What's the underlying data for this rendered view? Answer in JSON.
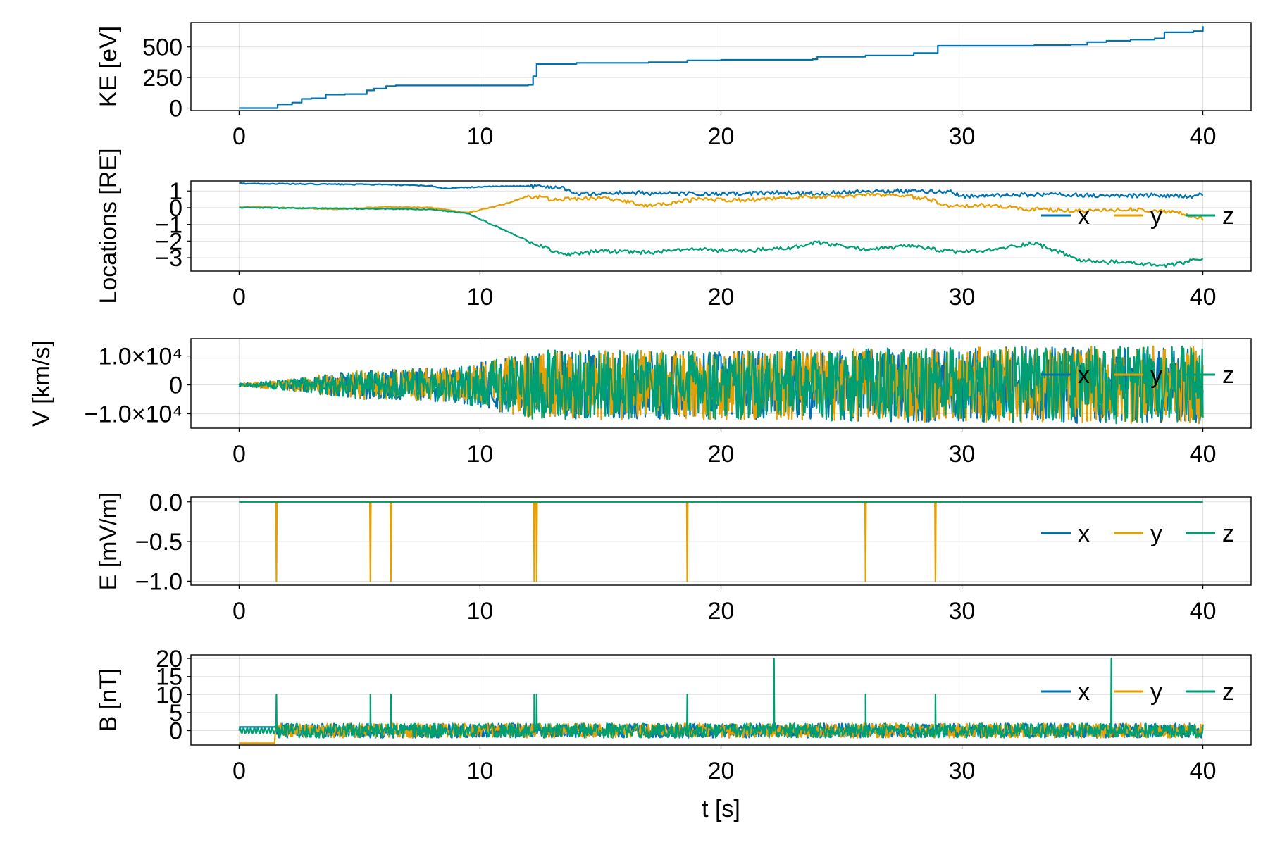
{
  "chart_data": [
    {
      "type": "line",
      "ylabel": "KE [eV]",
      "xlabel": "",
      "xlim": [
        -2,
        42
      ],
      "ylim": [
        -20,
        700
      ],
      "xticks": [
        0,
        10,
        20,
        30,
        40
      ],
      "xtick_labels": [
        "0",
        "10",
        "20",
        "30",
        "40"
      ],
      "yticks": [
        0,
        250,
        500
      ],
      "ytick_labels": [
        "0",
        "250",
        "500"
      ],
      "grid": true,
      "legend": null,
      "series": [
        {
          "color": "#0072B2",
          "x": [
            0,
            1.4,
            1.6,
            2.2,
            2.6,
            3.0,
            3.6,
            4.4,
            5.3,
            5.6,
            6.1,
            6.5,
            8.0,
            12.0,
            12.2,
            12.35,
            14.0,
            17.0,
            18.6,
            20.0,
            23.8,
            24.0,
            26.0,
            28.0,
            29.0,
            33.0,
            34.5,
            35.2,
            36.0,
            37.0,
            38.0,
            38.4,
            39.6,
            40.0
          ],
          "y": [
            0,
            0,
            30,
            45,
            75,
            80,
            110,
            115,
            145,
            160,
            180,
            185,
            185,
            190,
            260,
            360,
            370,
            375,
            390,
            395,
            400,
            420,
            430,
            450,
            510,
            515,
            520,
            540,
            550,
            560,
            570,
            620,
            630,
            670
          ]
        }
      ]
    },
    {
      "type": "line",
      "ylabel": "Locations [RE]",
      "xlabel": "",
      "xlim": [
        -2,
        42
      ],
      "ylim": [
        -3.8,
        1.6
      ],
      "xticks": [
        0,
        10,
        20,
        30,
        40
      ],
      "xtick_labels": [
        "0",
        "10",
        "20",
        "30",
        "40"
      ],
      "yticks": [
        -3,
        -2,
        -1,
        0,
        1
      ],
      "ytick_labels": [
        "−3",
        "−2",
        "−1",
        "0",
        "1"
      ],
      "grid": true,
      "legend": "right",
      "series": [
        {
          "name": "x",
          "color": "#0072B2",
          "x": [
            0,
            2,
            4,
            6,
            8,
            8.5,
            10,
            12,
            13.5,
            14,
            16,
            18,
            20,
            22,
            24,
            26,
            28,
            29.5,
            30,
            32,
            34,
            36,
            38,
            39.5,
            40
          ],
          "y": [
            1.45,
            1.42,
            1.4,
            1.38,
            1.3,
            1.15,
            1.25,
            1.3,
            1.2,
            0.8,
            0.9,
            0.85,
            0.8,
            0.9,
            0.85,
            1.0,
            1.0,
            0.95,
            0.7,
            0.75,
            0.8,
            0.7,
            0.75,
            0.65,
            0.8
          ]
        },
        {
          "name": "y",
          "color": "#E69F00",
          "x": [
            0,
            2,
            4,
            6,
            8,
            9.5,
            11,
            12,
            13,
            15,
            17,
            19,
            21,
            23,
            25,
            27,
            28.5,
            29.5,
            31,
            33,
            35,
            37,
            39,
            40
          ],
          "y": [
            0.05,
            0.0,
            -0.1,
            0.05,
            0.0,
            -0.3,
            0.2,
            0.7,
            0.5,
            0.6,
            0.1,
            0.5,
            0.45,
            0.6,
            0.7,
            0.8,
            0.55,
            0.1,
            0.15,
            -0.1,
            -0.2,
            -0.1,
            -0.3,
            -0.7
          ]
        },
        {
          "name": "z",
          "color": "#009E73",
          "x": [
            0,
            4,
            8,
            9.5,
            12,
            13.5,
            15,
            17,
            19,
            21,
            23,
            24,
            26,
            28,
            29.5,
            31,
            33,
            35,
            37,
            38.5,
            40
          ],
          "y": [
            0.0,
            -0.05,
            -0.1,
            -0.35,
            -2.0,
            -2.85,
            -2.6,
            -2.7,
            -2.5,
            -2.6,
            -2.4,
            -2.1,
            -2.5,
            -2.3,
            -2.65,
            -2.6,
            -2.1,
            -3.2,
            -3.3,
            -3.5,
            -3.05
          ]
        }
      ]
    },
    {
      "type": "line",
      "ylabel": "V [km/s]",
      "xlabel": "",
      "xlim": [
        -2,
        42
      ],
      "ylim": [
        -15000,
        16000
      ],
      "xticks": [
        0,
        10,
        20,
        30,
        40
      ],
      "xtick_labels": [
        "0",
        "10",
        "20",
        "30",
        "40"
      ],
      "yticks": [
        -10000,
        0,
        10000
      ],
      "ytick_labels": [
        "−1.0×10⁴",
        "0",
        "1.0×10⁴"
      ],
      "grid": true,
      "legend": "right",
      "series": [
        {
          "name": "x",
          "color": "#0072B2",
          "envelope_x": [
            0,
            1.5,
            5,
            9,
            12.3,
            20,
            30,
            40
          ],
          "envelope_amplitude": [
            500,
            1500,
            5000,
            6000,
            12000,
            12000,
            13000,
            13500
          ]
        },
        {
          "name": "y",
          "color": "#E69F00",
          "envelope_x": [
            0,
            1.5,
            5,
            9,
            12.3,
            20,
            30,
            40
          ],
          "envelope_amplitude": [
            500,
            1500,
            5000,
            6000,
            12000,
            12000,
            13000,
            13500
          ]
        },
        {
          "name": "z",
          "color": "#009E73",
          "envelope_x": [
            0,
            1.5,
            5,
            9,
            12.3,
            20,
            30,
            40
          ],
          "envelope_amplitude": [
            500,
            1500,
            5000,
            6000,
            12000,
            12000,
            13000,
            13500
          ]
        }
      ]
    },
    {
      "type": "line",
      "ylabel": "E [mV/m]",
      "xlabel": "",
      "xlim": [
        -2,
        42
      ],
      "ylim": [
        -1.05,
        0.06
      ],
      "xticks": [
        0,
        10,
        20,
        30,
        40
      ],
      "xtick_labels": [
        "0",
        "10",
        "20",
        "30",
        "40"
      ],
      "yticks": [
        -1.0,
        -0.5,
        0.0
      ],
      "ytick_labels": [
        "−1.0",
        "−0.5",
        "0.0"
      ],
      "grid": true,
      "legend": "right",
      "series": [
        {
          "name": "x",
          "color": "#0072B2",
          "x": [
            0,
            40
          ],
          "y": [
            0,
            0
          ]
        },
        {
          "name": "y",
          "color": "#E69F00",
          "baseline": 0,
          "spike_x": [
            1.55,
            5.45,
            6.3,
            12.25,
            12.35,
            18.6,
            26.0,
            28.9
          ],
          "spike_y": -1.0
        },
        {
          "name": "z",
          "color": "#009E73",
          "x": [
            0,
            40
          ],
          "y": [
            0,
            0
          ]
        }
      ]
    },
    {
      "type": "line",
      "ylabel": "B [nT]",
      "xlabel": "t [s]",
      "xlim": [
        -2,
        42
      ],
      "ylim": [
        -4,
        21
      ],
      "xticks": [
        0,
        10,
        20,
        30,
        40
      ],
      "xtick_labels": [
        "0",
        "10",
        "20",
        "30",
        "40"
      ],
      "yticks": [
        0,
        5,
        10,
        15,
        20
      ],
      "ytick_labels": [
        "0",
        "5",
        "10",
        "15",
        "20"
      ],
      "grid": true,
      "legend": "right",
      "series": [
        {
          "name": "x",
          "color": "#0072B2",
          "pre_x": [
            0,
            1.5
          ],
          "pre_y": [
            1,
            1
          ],
          "noise_amplitude": 2
        },
        {
          "name": "y",
          "color": "#E69F00",
          "pre_x": [
            0,
            1.5
          ],
          "pre_y": [
            -3.5,
            -3.5
          ],
          "noise_amplitude": 2
        },
        {
          "name": "z",
          "color": "#009E73",
          "pre_x": [
            0,
            1.5
          ],
          "pre_y": [
            0,
            0
          ],
          "noise_amplitude": 2,
          "spike_x": [
            1.55,
            5.45,
            6.3,
            12.25,
            12.35,
            18.6,
            22.2,
            26.0,
            28.9,
            36.2
          ],
          "spike_y": [
            10,
            10,
            10,
            10,
            10,
            10,
            20,
            10,
            10,
            20
          ]
        }
      ]
    }
  ]
}
